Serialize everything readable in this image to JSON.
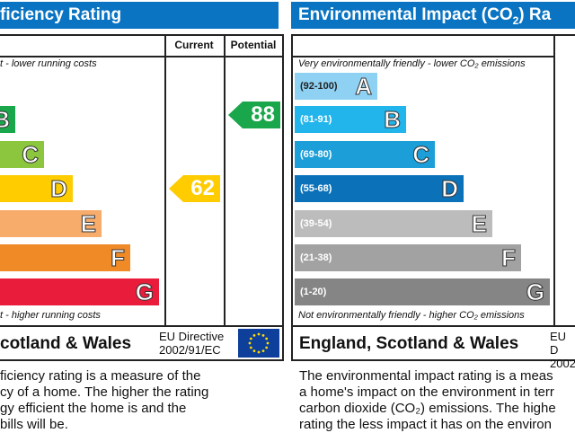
{
  "chart_data": [
    {
      "type": "bar",
      "title": "ficiency Rating",
      "columns": [
        "Current",
        "Potential"
      ],
      "top_note": "t - lower running costs",
      "bottom_note": "t - higher running costs",
      "bands": [
        {
          "letter": "B",
          "color": "#1aa64a"
        },
        {
          "letter": "C",
          "color": "#8cc63f"
        },
        {
          "letter": "D",
          "color": "#ffcc00"
        },
        {
          "letter": "E",
          "color": "#f7ac6b"
        },
        {
          "letter": "F",
          "color": "#f08a27"
        },
        {
          "letter": "G",
          "color": "#ea1c3c"
        }
      ],
      "current": {
        "value": "62",
        "band": "D",
        "color": "#ffcc00"
      },
      "potential": {
        "value": "88",
        "band": "B",
        "color": "#1aa64a"
      },
      "footer": "cotland & Wales",
      "directive": [
        "EU Directive",
        "2002/91/EC"
      ],
      "description": [
        "ficiency rating is a measure of the",
        "cy of a home. The higher the rating",
        "gy efficient the home is and the",
        "bills will be."
      ]
    },
    {
      "type": "bar",
      "title": "Environmental Impact (CO",
      "title_sub": "2",
      "title_end": ") Ra",
      "top_note": "Very environmentally friendly - lower CO₂ emissions",
      "bottom_note": "Not environmentally friendly - higher CO₂ emissions",
      "bands": [
        {
          "letter": "A",
          "range": "(92-100)",
          "color": "#8fd1f3"
        },
        {
          "letter": "B",
          "range": "(81-91)",
          "color": "#22b5ec"
        },
        {
          "letter": "C",
          "range": "(69-80)",
          "color": "#1c9fd9"
        },
        {
          "letter": "D",
          "range": "(55-68)",
          "color": "#0b72b9"
        },
        {
          "letter": "E",
          "range": "(39-54)",
          "color": "#bcbcbc"
        },
        {
          "letter": "F",
          "range": "(21-38)",
          "color": "#a2a2a2"
        },
        {
          "letter": "G",
          "range": "(1-20)",
          "color": "#858585"
        }
      ],
      "footer": "England, Scotland & Wales",
      "directive": [
        "EU D",
        "2002"
      ],
      "description": [
        "The environmental impact rating is a meas",
        "a home's impact on the environment in terr",
        "carbon dioxide (CO₂) emissions. The highe",
        "rating the less impact it has on the environ"
      ]
    }
  ]
}
